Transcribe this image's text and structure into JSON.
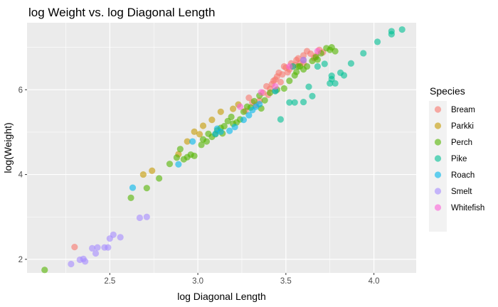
{
  "chart_data": {
    "type": "scatter",
    "title": "log Weight vs. log Diagonal Length",
    "xlabel": "log Diagonal Length",
    "ylabel": "log(Weight)",
    "xlim": [
      2.03,
      4.24
    ],
    "ylim": [
      1.68,
      7.58
    ],
    "x_ticks": [
      {
        "value": 2.5,
        "label": "2.5"
      },
      {
        "value": 3.0,
        "label": "3.0"
      },
      {
        "value": 3.5,
        "label": "3.5"
      },
      {
        "value": 4.0,
        "label": "4.0"
      }
    ],
    "y_ticks": [
      {
        "value": 2,
        "label": "2"
      },
      {
        "value": 4,
        "label": "4"
      },
      {
        "value": 6,
        "label": "6"
      }
    ],
    "grid": true,
    "panel_background": "#ebebeb",
    "legend": {
      "title": "Species",
      "position": "right"
    },
    "series": [
      {
        "name": "Bream",
        "color": "#F8766D",
        "points": [
          [
            2.3,
            2.29
          ],
          [
            3.27,
            5.5
          ],
          [
            3.29,
            5.81
          ],
          [
            3.31,
            5.7
          ],
          [
            3.33,
            5.64
          ],
          [
            3.35,
            5.74
          ],
          [
            3.37,
            5.93
          ],
          [
            3.39,
            6.08
          ],
          [
            3.4,
            5.88
          ],
          [
            3.41,
            6.02
          ],
          [
            3.42,
            6.13
          ],
          [
            3.43,
            6.21
          ],
          [
            3.44,
            6.24
          ],
          [
            3.45,
            6.31
          ],
          [
            3.46,
            6.4
          ],
          [
            3.47,
            6.18
          ],
          [
            3.48,
            6.36
          ],
          [
            3.49,
            6.55
          ],
          [
            3.5,
            6.52
          ],
          [
            3.51,
            6.41
          ],
          [
            3.52,
            6.48
          ],
          [
            3.53,
            6.62
          ],
          [
            3.54,
            6.55
          ],
          [
            3.55,
            6.58
          ],
          [
            3.56,
            6.7
          ],
          [
            3.57,
            6.74
          ],
          [
            3.58,
            6.62
          ],
          [
            3.6,
            6.81
          ],
          [
            3.62,
            6.91
          ],
          [
            3.64,
            6.85
          ],
          [
            3.66,
            6.75
          ],
          [
            3.67,
            6.8
          ],
          [
            3.69,
            6.94
          ],
          [
            3.71,
            6.88
          ],
          [
            3.6,
            6.62
          ]
        ]
      },
      {
        "name": "Parkki",
        "color": "#C49A00",
        "points": [
          [
            2.69,
            4.0
          ],
          [
            2.74,
            4.09
          ],
          [
            2.89,
            4.48
          ],
          [
            2.94,
            4.78
          ],
          [
            2.98,
            5.01
          ],
          [
            3.03,
            5.15
          ],
          [
            3.08,
            5.29
          ],
          [
            3.13,
            5.48
          ],
          [
            3.2,
            5.55
          ],
          [
            3.23,
            5.65
          ],
          [
            3.01,
            4.95
          ]
        ]
      },
      {
        "name": "Perch",
        "color": "#53B400",
        "points": [
          [
            2.13,
            1.75
          ],
          [
            2.62,
            3.45
          ],
          [
            2.71,
            3.68
          ],
          [
            2.78,
            3.91
          ],
          [
            2.84,
            4.25
          ],
          [
            2.88,
            4.4
          ],
          [
            2.9,
            4.6
          ],
          [
            2.92,
            4.36
          ],
          [
            2.94,
            4.41
          ],
          [
            2.96,
            4.47
          ],
          [
            2.98,
            4.44
          ],
          [
            3.02,
            4.7
          ],
          [
            3.03,
            4.83
          ],
          [
            3.05,
            4.78
          ],
          [
            3.06,
            4.96
          ],
          [
            3.08,
            4.89
          ],
          [
            3.1,
            4.95
          ],
          [
            3.11,
            5.04
          ],
          [
            3.13,
            5.1
          ],
          [
            3.15,
            5.14
          ],
          [
            3.17,
            5.26
          ],
          [
            3.19,
            5.36
          ],
          [
            3.2,
            5.2
          ],
          [
            3.22,
            5.23
          ],
          [
            3.24,
            5.3
          ],
          [
            3.26,
            5.48
          ],
          [
            3.28,
            5.6
          ],
          [
            3.3,
            5.58
          ],
          [
            3.32,
            5.73
          ],
          [
            3.35,
            5.86
          ],
          [
            3.38,
            5.75
          ],
          [
            3.41,
            5.93
          ],
          [
            3.45,
            6.0
          ],
          [
            3.49,
            6.03
          ],
          [
            3.52,
            6.21
          ],
          [
            3.55,
            6.34
          ],
          [
            3.58,
            6.55
          ],
          [
            3.6,
            6.48
          ],
          [
            3.62,
            6.55
          ],
          [
            3.65,
            6.68
          ],
          [
            3.67,
            6.77
          ],
          [
            3.7,
            6.86
          ],
          [
            3.73,
            6.98
          ],
          [
            3.76,
            7.0
          ],
          [
            3.78,
            6.91
          ],
          [
            3.75,
            6.94
          ],
          [
            3.68,
            6.71
          ],
          [
            3.56,
            6.42
          ],
          [
            3.44,
            5.97
          ],
          [
            3.36,
            5.56
          ],
          [
            3.14,
            4.97
          ],
          [
            3.57,
            6.55
          ]
        ]
      },
      {
        "name": "Pike",
        "color": "#00C094",
        "points": [
          [
            3.47,
            5.3
          ],
          [
            3.52,
            5.7
          ],
          [
            3.55,
            5.7
          ],
          [
            3.6,
            5.71
          ],
          [
            3.63,
            6.07
          ],
          [
            3.65,
            5.85
          ],
          [
            3.68,
            6.55
          ],
          [
            3.72,
            6.61
          ],
          [
            3.75,
            6.15
          ],
          [
            3.76,
            6.25
          ],
          [
            3.78,
            6.15
          ],
          [
            3.81,
            6.4
          ],
          [
            3.83,
            6.34
          ],
          [
            3.87,
            6.62
          ],
          [
            3.94,
            6.86
          ],
          [
            4.02,
            7.13
          ],
          [
            4.1,
            7.31
          ],
          [
            4.1,
            7.38
          ],
          [
            4.16,
            7.42
          ],
          [
            3.54,
            6.55
          ],
          [
            3.76,
            6.33
          ]
        ]
      },
      {
        "name": "Roach",
        "color": "#00B6EB",
        "points": [
          [
            2.63,
            3.69
          ],
          [
            2.89,
            4.24
          ],
          [
            2.97,
            4.78
          ],
          [
            3.11,
            5.08
          ],
          [
            3.13,
            5.01
          ],
          [
            3.21,
            5.12
          ],
          [
            3.26,
            5.29
          ],
          [
            3.29,
            5.4
          ],
          [
            3.31,
            5.52
          ],
          [
            3.33,
            5.6
          ],
          [
            3.35,
            5.66
          ],
          [
            3.44,
            5.97
          ],
          [
            3.6,
            6.7
          ],
          [
            3.1,
            4.96
          ],
          [
            3.18,
            5.03
          ]
        ]
      },
      {
        "name": "Smelt",
        "color": "#A58AFF",
        "points": [
          [
            2.28,
            1.89
          ],
          [
            2.33,
            1.99
          ],
          [
            2.35,
            2.01
          ],
          [
            2.36,
            1.95
          ],
          [
            2.4,
            2.26
          ],
          [
            2.43,
            2.28
          ],
          [
            2.42,
            2.14
          ],
          [
            2.47,
            2.28
          ],
          [
            2.49,
            2.28
          ],
          [
            2.5,
            2.49
          ],
          [
            2.52,
            2.58
          ],
          [
            2.56,
            2.52
          ],
          [
            2.67,
            2.98
          ],
          [
            2.71,
            3.0
          ]
        ]
      },
      {
        "name": "Whitefish",
        "color": "#FB61D7",
        "points": [
          [
            3.24,
            5.6
          ],
          [
            3.36,
            5.94
          ],
          [
            3.44,
            6.08
          ],
          [
            3.52,
            6.55
          ],
          [
            3.6,
            6.7
          ],
          [
            3.68,
            6.91
          ]
        ]
      }
    ]
  }
}
